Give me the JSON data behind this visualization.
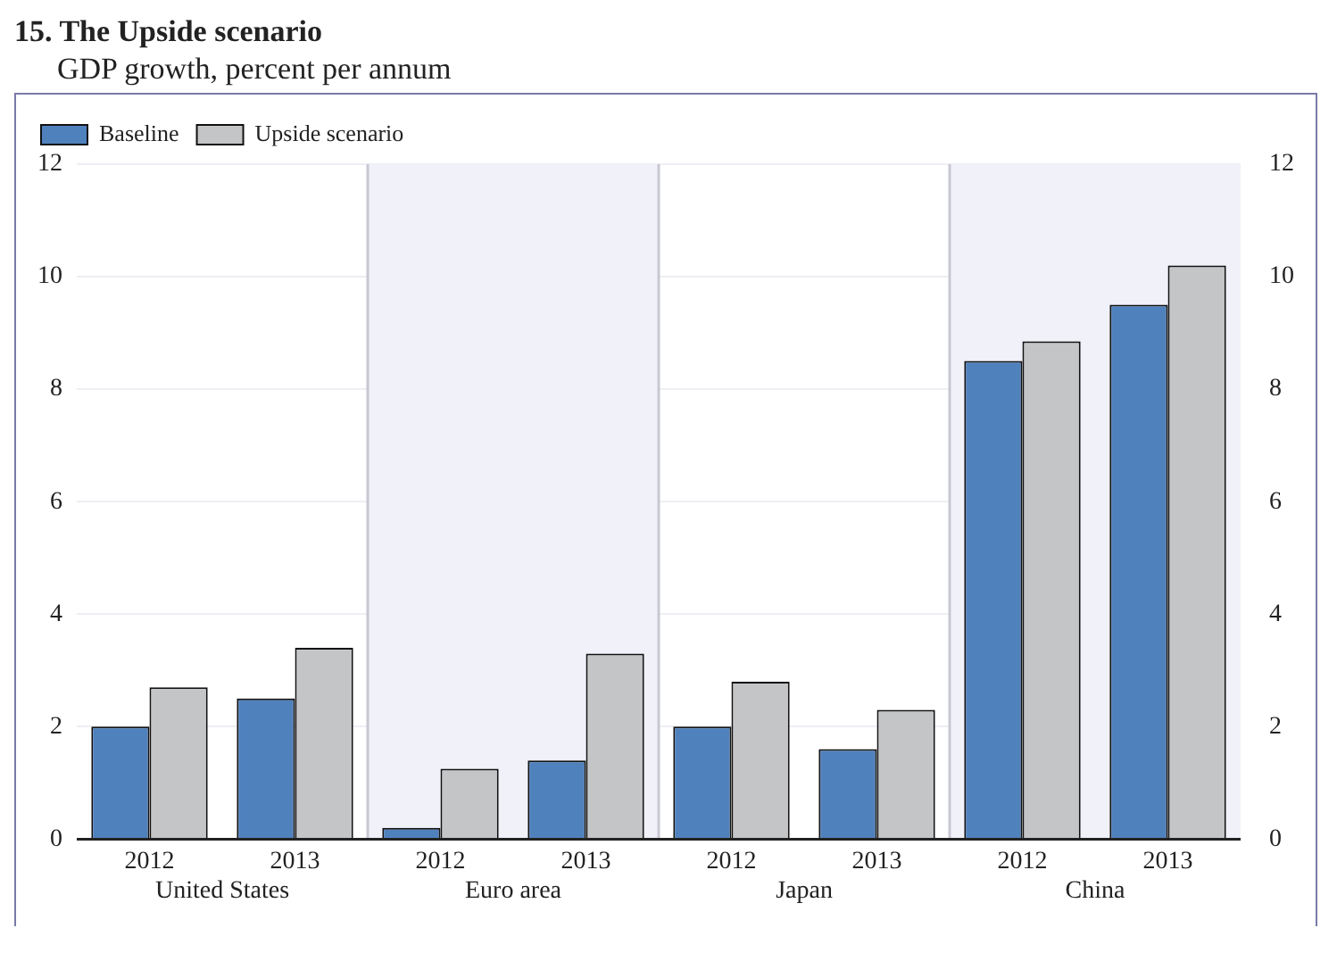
{
  "chart_data": {
    "type": "bar",
    "title": "15. The Upside scenario",
    "subtitle": "GDP growth, percent per annum",
    "categories": [
      "2012",
      "2013",
      "2012",
      "2013",
      "2012",
      "2013",
      "2012",
      "2013"
    ],
    "annotations": [
      "United States",
      "Euro area",
      "Japan",
      "China"
    ],
    "series": [
      {
        "name": "Baseline",
        "color": "#4f81bd",
        "values": [
          2.0,
          2.5,
          0.2,
          1.4,
          2.0,
          1.6,
          8.5,
          9.5
        ]
      },
      {
        "name": "Upside scenario",
        "color": "#c4c5c7",
        "values": [
          2.7,
          3.4,
          1.25,
          3.3,
          2.8,
          2.3,
          8.85,
          10.2
        ]
      }
    ],
    "ylim": [
      0,
      12
    ],
    "yticks": [
      0,
      2,
      4,
      6,
      8,
      10,
      12
    ],
    "y2lim": [
      0,
      12
    ],
    "y2ticks": [
      0,
      2,
      4,
      6,
      8,
      10,
      12
    ],
    "grid": "y",
    "legend": "top left"
  }
}
